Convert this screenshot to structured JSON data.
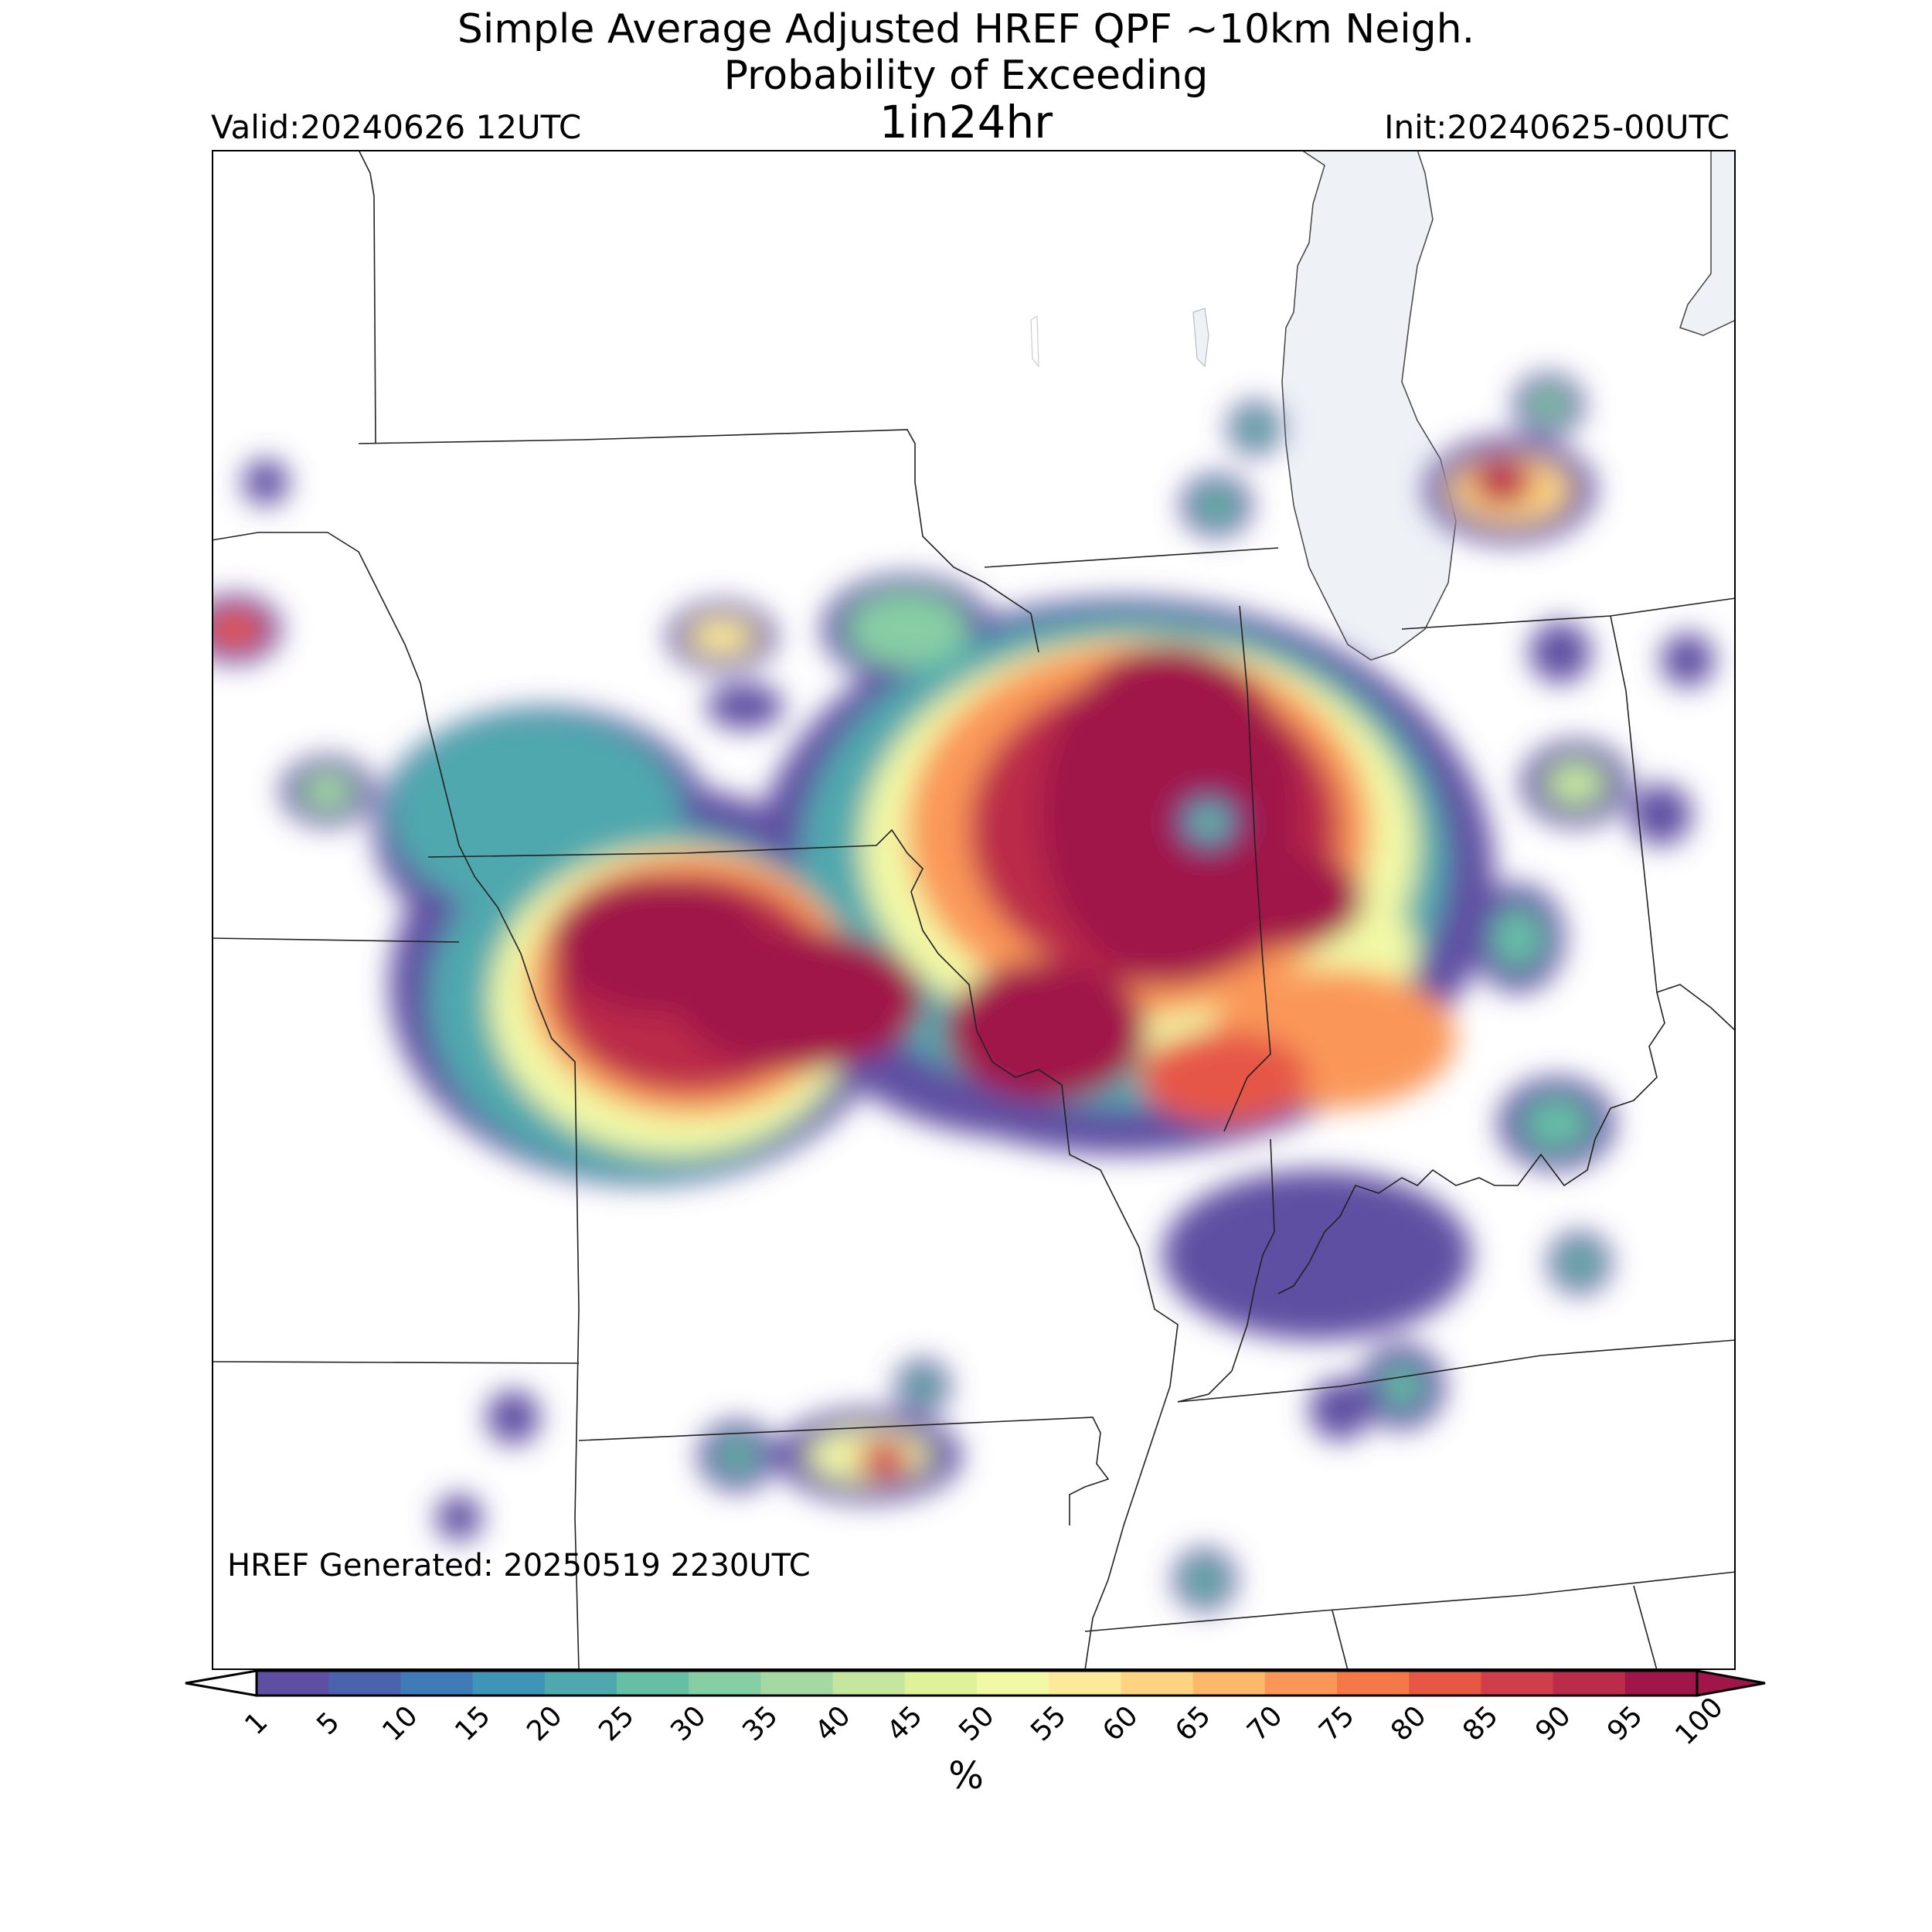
{
  "title": {
    "line1": "Simple Average Adjusted HREF QPF ~10km Neigh.",
    "line2": "Probability of Exceeding",
    "line3": "1in24hr",
    "valid": "Valid:20240626 12UTC",
    "init": "Init:20240625-00UTC"
  },
  "map": {
    "generated_note": "HREF Generated: 20250519 2230UTC",
    "water_color": "#eef2f7",
    "features": [
      "state-borders",
      "lake-michigan",
      "probability-field"
    ]
  },
  "colorbar": {
    "label": "%",
    "ticks": [
      "1",
      "5",
      "10",
      "15",
      "20",
      "25",
      "30",
      "35",
      "40",
      "45",
      "50",
      "55",
      "60",
      "65",
      "70",
      "75",
      "80",
      "85",
      "90",
      "95",
      "100"
    ],
    "colors": [
      "#5e4fa2",
      "#4b63ac",
      "#3f7bb7",
      "#3e95b7",
      "#4fa8ae",
      "#66bea5",
      "#86cea4",
      "#a5d9a4",
      "#c4e69f",
      "#dff29a",
      "#f2f9a6",
      "#fde99a",
      "#fed483",
      "#fdb86a",
      "#fa9758",
      "#f47848",
      "#e65746",
      "#d13e4b",
      "#bb2b4a",
      "#a0154a"
    ]
  }
}
